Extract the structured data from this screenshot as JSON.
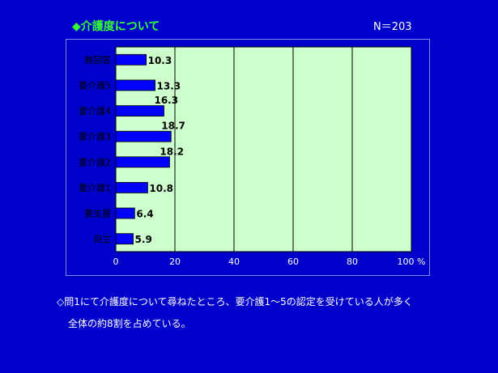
{
  "title": "◆介護度について",
  "n_text": "N＝203",
  "note_lines": [
    "◇問1にて介護度について尋ねたところ、要介護1～5の認定を受けている人が多く",
    "全体の約8割を占めている。"
  ],
  "colors": {
    "background": "#0000cc",
    "plot_area": "#ccffcc",
    "bar": "#0000ff",
    "title": "#33ff33",
    "text": "#ffffff",
    "label": "#000000"
  },
  "chart_data": {
    "type": "bar",
    "orientation": "horizontal",
    "categories": [
      "無回答",
      "要介護5",
      "要介護4",
      "要介護3",
      "要介護2",
      "要介護1",
      "要支援",
      "自立"
    ],
    "values": [
      10.3,
      13.3,
      16.3,
      18.7,
      18.2,
      10.8,
      6.4,
      5.9
    ],
    "xlim": [
      0,
      100
    ],
    "x_ticks": [
      0,
      20,
      40,
      60,
      80,
      100
    ],
    "x_unit": "%",
    "grid": true
  }
}
